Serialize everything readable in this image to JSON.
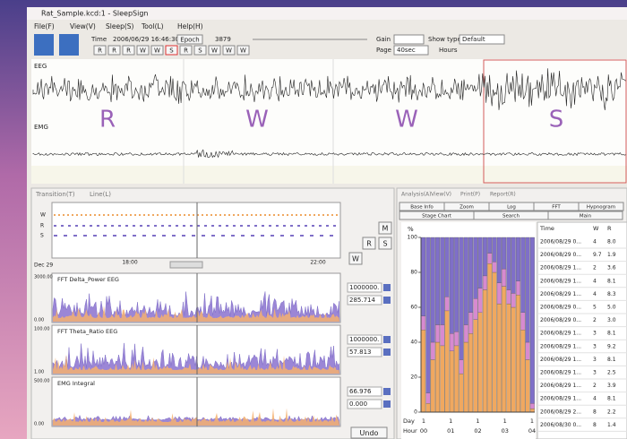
{
  "window": {
    "title": "Rat_Sample.kcd:1 - SleepSign"
  },
  "menu": [
    "File(F)",
    "View(V)",
    "Sleep(S)",
    "Tool(L)",
    "Help(H)"
  ],
  "toolbar": {
    "time_label": "Time",
    "time": "2006/06/29 16:46:30",
    "epoch_button": "Epoch",
    "epoch": "3879",
    "gain_label": "Gain",
    "show_type_label": "Show type",
    "show_type": "Default",
    "page_label": "Page",
    "page": "40sec",
    "hours": "Hours",
    "stage_buttons": [
      "R",
      "R",
      "R",
      "W",
      "W",
      "S",
      "R",
      "S",
      "W",
      "W",
      "W"
    ]
  },
  "eeg_panel": {
    "eeg_label": "EEG",
    "emg_label": "EMG",
    "stages": [
      "R",
      "W",
      "W",
      "S"
    ]
  },
  "left_panel": {
    "tabs": [
      "Transition(T)",
      "Line(L)"
    ],
    "transition_rows": [
      "W",
      "R",
      "S"
    ],
    "transition_date": "Dec 29",
    "transition_ticks": [
      "18:00",
      "22:00"
    ],
    "traces": [
      {
        "title": "FFT  Delta_Power  EEG",
        "top": "3000.00",
        "bottom": "0.00",
        "value_top": "1000000.",
        "value_bottom": "285.714"
      },
      {
        "title": "FFT  Theta_Ratio  EEG",
        "top": "100.00",
        "bottom": "1.00",
        "value_top": "1000000.",
        "value_bottom": "57.813"
      },
      {
        "title": "EMG  Integral",
        "top": "500.00",
        "bottom": "0.00",
        "value_top": "66.976",
        "value_bottom": "0.000"
      }
    ],
    "stage_buttons": [
      "M",
      "R",
      "S",
      "W"
    ],
    "undo": "Undo"
  },
  "right_panel": {
    "menu": [
      "Analysis(A)",
      "View(V)",
      "Print(P)",
      "Report(R)"
    ],
    "tabs_row1": [
      "Base Info",
      "Zoom",
      "Log",
      "FFT",
      "Hypnogram"
    ],
    "tabs_row2": [
      "Stage Chart",
      "Search",
      "Main"
    ],
    "chart": {
      "type": "bar",
      "stacked": true,
      "y_label": "%",
      "ylim": [
        0,
        100
      ],
      "yticks": [
        0,
        20,
        40,
        60,
        80,
        100
      ],
      "day_label": "Day",
      "hour_label": "Hour",
      "days": [
        "1",
        "1",
        "1",
        "1",
        "1"
      ],
      "hours": [
        "00",
        "01",
        "02",
        "03",
        "04"
      ],
      "series": [
        {
          "color": "#f0a860",
          "values": [
            47,
            5,
            30,
            40,
            38,
            58,
            35,
            38,
            22,
            40,
            45,
            53,
            57,
            70,
            85,
            80,
            62,
            72,
            62,
            60,
            67,
            47,
            30,
            2
          ]
        },
        {
          "color": "#d78ad0",
          "values": [
            8,
            6,
            10,
            10,
            12,
            8,
            10,
            8,
            8,
            10,
            12,
            12,
            14,
            8,
            6,
            6,
            12,
            10,
            8,
            8,
            8,
            10,
            10,
            3
          ]
        },
        {
          "color": "#7f6fc8",
          "values": [
            45,
            89,
            60,
            50,
            50,
            34,
            55,
            54,
            70,
            50,
            43,
            35,
            29,
            22,
            9,
            14,
            26,
            18,
            30,
            32,
            25,
            43,
            60,
            95
          ]
        }
      ]
    },
    "table": {
      "columns": [
        "Time",
        "W",
        "R"
      ],
      "rows": [
        [
          "2006/08/29 0...",
          "4",
          "8.0"
        ],
        [
          "2006/08/29 0...",
          "9.7",
          "1.9"
        ],
        [
          "2006/08/29 1...",
          "2",
          "3.6"
        ],
        [
          "2006/08/29 1...",
          "4",
          "8.1"
        ],
        [
          "2006/08/29 1...",
          "4",
          "8.3"
        ],
        [
          "2006/08/29 0...",
          "5",
          "5.0"
        ],
        [
          "2006/08/29 0...",
          "2",
          "3.0"
        ],
        [
          "2006/08/29 1...",
          "3",
          "8.1"
        ],
        [
          "2006/08/29 1...",
          "3",
          "9.2"
        ],
        [
          "2006/08/29 1...",
          "3",
          "8.1"
        ],
        [
          "2006/08/29 1...",
          "3",
          "2.5"
        ],
        [
          "2006/08/29 1...",
          "2",
          "3.9"
        ],
        [
          "2006/08/29 1...",
          "4",
          "8.1"
        ],
        [
          "2006/08/29 2...",
          "8",
          "2.2"
        ],
        [
          "2006/08/30 0...",
          "8",
          "1.4"
        ]
      ]
    }
  }
}
